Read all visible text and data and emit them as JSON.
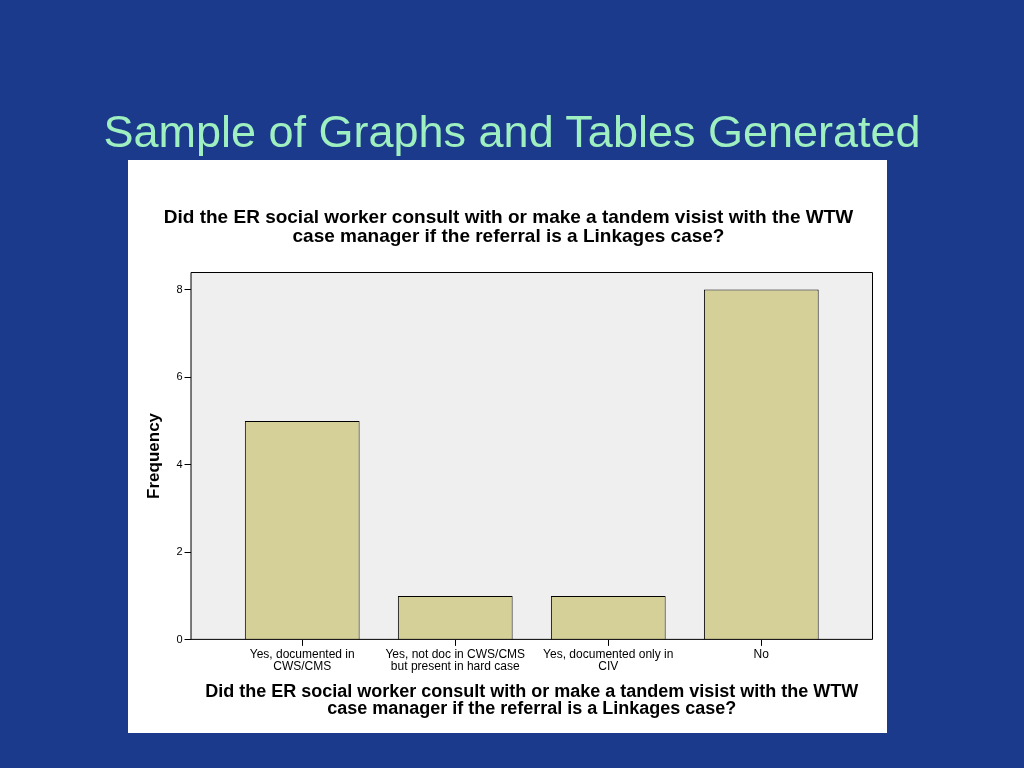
{
  "chart_data": {
    "type": "bar",
    "title": "Sample of Graphs and Tables Generated",
    "subtitle": "Did the ER social worker consult with or make a tandem visist with the WTW case manager if the referral is a Linkages case?",
    "xlabel": "Did the ER social worker consult with or make a tandem visist with the WTW case manager if the referral is a Linkages case?",
    "ylabel": "Frequency",
    "categories": [
      "Yes, documented in CWS/CMS",
      "Yes, not doc in CWS/CMS but present in hard case",
      "Yes, documented only in CIV",
      "No"
    ],
    "values": [
      5,
      1,
      1,
      8
    ],
    "color": "#d4d098",
    "ylim": [
      0,
      8.4
    ],
    "yticks": [
      0,
      2,
      4,
      6,
      8
    ],
    "grid": false,
    "legend": false
  }
}
